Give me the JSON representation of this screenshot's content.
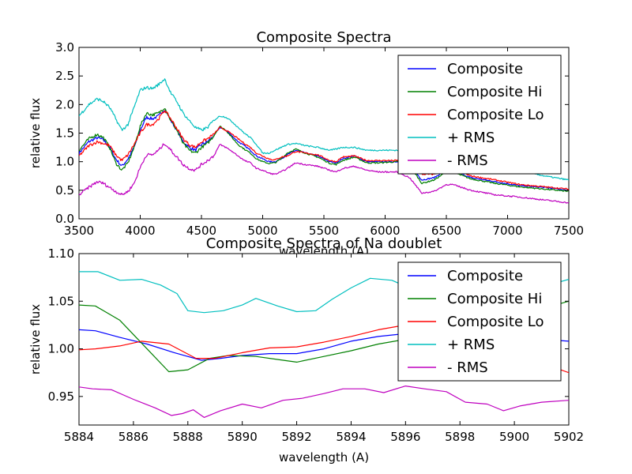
{
  "chart_data": [
    {
      "type": "line",
      "title": "Composite Spectra",
      "xlabel": "wavelength (A)",
      "ylabel": "relative flux",
      "xlim": [
        3500,
        7500
      ],
      "ylim": [
        0.0,
        3.0
      ],
      "xticks": [
        "3500",
        "4000",
        "4500",
        "5000",
        "5500",
        "6000",
        "6500",
        "7000",
        "7500"
      ],
      "yticks": [
        "0.0",
        "0.5",
        "1.0",
        "1.5",
        "2.0",
        "2.5",
        "3.0"
      ],
      "grid": false,
      "legend_position": "top-right",
      "series": [
        {
          "name": "Composite",
          "color": "#0000ff",
          "x": [
            3500,
            3580,
            3650,
            3700,
            3750,
            3800,
            3850,
            3900,
            3950,
            4000,
            4050,
            4100,
            4150,
            4200,
            4250,
            4300,
            4350,
            4400,
            4450,
            4500,
            4550,
            4600,
            4650,
            4700,
            4750,
            4800,
            4850,
            4900,
            4950,
            5000,
            5050,
            5100,
            5150,
            5200,
            5270,
            5350,
            5450,
            5550,
            5600,
            5650,
            5750,
            5850,
            5950,
            6100,
            6200,
            6300,
            6400,
            6500,
            6550,
            6700,
            6900,
            7100,
            7300,
            7500
          ],
          "y": [
            1.15,
            1.35,
            1.42,
            1.38,
            1.25,
            1.05,
            0.92,
            1.05,
            1.25,
            1.55,
            1.78,
            1.75,
            1.8,
            1.92,
            1.72,
            1.55,
            1.35,
            1.25,
            1.2,
            1.3,
            1.35,
            1.45,
            1.6,
            1.55,
            1.45,
            1.35,
            1.28,
            1.2,
            1.1,
            1.05,
            1.0,
            1.0,
            1.05,
            1.12,
            1.2,
            1.15,
            1.1,
            1.0,
            0.98,
            1.05,
            1.1,
            1.0,
            1.0,
            1.0,
            0.95,
            0.68,
            0.72,
            0.85,
            0.85,
            0.72,
            0.65,
            0.58,
            0.55,
            0.5
          ]
        },
        {
          "name": "Composite Hi",
          "color": "#008000",
          "x": [
            3500,
            3580,
            3650,
            3700,
            3750,
            3800,
            3850,
            3900,
            3950,
            4000,
            4050,
            4100,
            4150,
            4200,
            4250,
            4300,
            4350,
            4400,
            4450,
            4500,
            4550,
            4600,
            4650,
            4700,
            4750,
            4800,
            4850,
            4900,
            4950,
            5000,
            5050,
            5100,
            5150,
            5200,
            5270,
            5350,
            5450,
            5550,
            5600,
            5650,
            5750,
            5850,
            5950,
            6100,
            6200,
            6300,
            6400,
            6500,
            6550,
            6700,
            6900,
            7100,
            7300,
            7500
          ],
          "y": [
            1.2,
            1.4,
            1.48,
            1.42,
            1.25,
            0.98,
            0.85,
            0.98,
            1.25,
            1.62,
            1.85,
            1.82,
            1.85,
            1.95,
            1.72,
            1.55,
            1.32,
            1.2,
            1.15,
            1.25,
            1.32,
            1.45,
            1.62,
            1.55,
            1.42,
            1.3,
            1.22,
            1.15,
            1.05,
            1.0,
            0.97,
            0.98,
            1.05,
            1.15,
            1.22,
            1.15,
            1.08,
            0.97,
            0.95,
            1.02,
            1.08,
            0.98,
            0.98,
            1.0,
            0.94,
            0.62,
            0.68,
            0.82,
            0.82,
            0.7,
            0.62,
            0.56,
            0.52,
            0.48
          ]
        },
        {
          "name": "Composite Lo",
          "color": "#ff0000",
          "x": [
            3500,
            3580,
            3650,
            3700,
            3750,
            3800,
            3850,
            3900,
            3950,
            4000,
            4050,
            4100,
            4150,
            4200,
            4250,
            4300,
            4350,
            4400,
            4450,
            4500,
            4550,
            4600,
            4650,
            4700,
            4750,
            4800,
            4850,
            4900,
            4950,
            5000,
            5050,
            5100,
            5150,
            5200,
            5270,
            5350,
            5450,
            5550,
            5600,
            5650,
            5750,
            5850,
            5950,
            6100,
            6200,
            6300,
            6400,
            6500,
            6550,
            6700,
            6900,
            7100,
            7300,
            7500
          ],
          "y": [
            1.1,
            1.28,
            1.35,
            1.32,
            1.28,
            1.12,
            1.02,
            1.12,
            1.3,
            1.5,
            1.65,
            1.65,
            1.75,
            1.9,
            1.75,
            1.58,
            1.4,
            1.3,
            1.25,
            1.35,
            1.4,
            1.48,
            1.6,
            1.55,
            1.48,
            1.4,
            1.32,
            1.25,
            1.15,
            1.1,
            1.05,
            1.03,
            1.08,
            1.1,
            1.18,
            1.15,
            1.12,
            1.02,
            1.0,
            1.08,
            1.1,
            1.02,
            1.02,
            1.02,
            1.0,
            0.78,
            0.78,
            0.88,
            0.88,
            0.75,
            0.68,
            0.6,
            0.56,
            0.52
          ]
        },
        {
          "name": "+ RMS",
          "color": "#00bfbf",
          "x": [
            3500,
            3580,
            3650,
            3700,
            3750,
            3800,
            3850,
            3900,
            3950,
            4000,
            4050,
            4100,
            4150,
            4200,
            4250,
            4300,
            4350,
            4400,
            4450,
            4500,
            4550,
            4600,
            4650,
            4700,
            4750,
            4800,
            4850,
            4900,
            4950,
            5000,
            5050,
            5100,
            5150,
            5200,
            5270,
            5350,
            5450,
            5550,
            5600,
            5650,
            5750,
            5850,
            5950,
            6100,
            6200,
            6300,
            6400,
            6500,
            6550,
            6700,
            6900,
            7100,
            7300,
            7500
          ],
          "y": [
            1.8,
            2.0,
            2.1,
            2.05,
            1.95,
            1.75,
            1.55,
            1.65,
            1.95,
            2.25,
            2.3,
            2.28,
            2.35,
            2.45,
            2.2,
            2.05,
            1.85,
            1.72,
            1.6,
            1.55,
            1.6,
            1.72,
            1.8,
            1.78,
            1.7,
            1.6,
            1.5,
            1.42,
            1.3,
            1.15,
            1.15,
            1.2,
            1.25,
            1.3,
            1.32,
            1.28,
            1.25,
            1.2,
            1.22,
            1.25,
            1.25,
            1.2,
            1.2,
            1.2,
            1.2,
            1.1,
            1.1,
            1.15,
            1.1,
            0.98,
            0.9,
            0.85,
            0.75,
            0.68
          ]
        },
        {
          "name": "- RMS",
          "color": "#bf00bf",
          "x": [
            3500,
            3580,
            3650,
            3700,
            3750,
            3800,
            3850,
            3900,
            3950,
            4000,
            4050,
            4100,
            4150,
            4200,
            4250,
            4300,
            4350,
            4400,
            4450,
            4500,
            4550,
            4600,
            4650,
            4700,
            4750,
            4800,
            4850,
            4900,
            4950,
            5000,
            5050,
            5100,
            5150,
            5200,
            5270,
            5350,
            5450,
            5550,
            5600,
            5650,
            5750,
            5850,
            5950,
            6100,
            6200,
            6300,
            6400,
            6500,
            6550,
            6700,
            6900,
            7100,
            7300,
            7500
          ],
          "y": [
            0.42,
            0.55,
            0.65,
            0.62,
            0.55,
            0.48,
            0.42,
            0.48,
            0.62,
            0.9,
            1.12,
            1.12,
            1.2,
            1.32,
            1.2,
            1.08,
            0.95,
            0.88,
            0.85,
            0.95,
            1.02,
            1.1,
            1.3,
            1.25,
            1.18,
            1.1,
            1.02,
            0.98,
            0.88,
            0.85,
            0.8,
            0.78,
            0.82,
            0.88,
            0.98,
            0.95,
            0.92,
            0.85,
            0.82,
            0.88,
            0.92,
            0.85,
            0.82,
            0.82,
            0.72,
            0.45,
            0.48,
            0.6,
            0.6,
            0.5,
            0.42,
            0.38,
            0.33,
            0.28
          ]
        }
      ]
    },
    {
      "type": "line",
      "title": "Composite Spectra of Na doublet",
      "xlabel": "wavelength (A)",
      "ylabel": "relative flux",
      "xlim": [
        5884,
        5902
      ],
      "ylim": [
        0.92,
        1.1
      ],
      "xticks": [
        "5884",
        "5886",
        "5888",
        "5890",
        "5892",
        "5894",
        "5896",
        "5898",
        "5900",
        "5902"
      ],
      "yticks": [
        "0.95",
        "1.00",
        "1.05",
        "1.10"
      ],
      "grid": false,
      "legend_position": "top-right",
      "series": [
        {
          "name": "Composite",
          "color": "#0000ff",
          "x": [
            5884,
            5884.6,
            5885.5,
            5886.5,
            5887.5,
            5888.5,
            5889.2,
            5890,
            5891,
            5892,
            5893,
            5894,
            5895,
            5896,
            5897,
            5898,
            5899,
            5900,
            5901,
            5902
          ],
          "y": [
            1.02,
            1.019,
            1.012,
            1.005,
            0.996,
            0.988,
            0.99,
            0.993,
            0.995,
            0.995,
            1.0,
            1.008,
            1.013,
            1.016,
            1.014,
            1.01,
            1.008,
            1.01,
            1.01,
            1.008
          ]
        },
        {
          "name": "Composite Hi",
          "color": "#008000",
          "x": [
            5884,
            5884.6,
            5885.5,
            5886.5,
            5887.3,
            5888,
            5888.8,
            5889.5,
            5890.5,
            5891.5,
            5892,
            5893,
            5894,
            5895,
            5896,
            5897,
            5898,
            5899,
            5900,
            5901,
            5902
          ],
          "y": [
            1.046,
            1.045,
            1.03,
            1.0,
            0.976,
            0.978,
            0.99,
            0.993,
            0.992,
            0.988,
            0.986,
            0.992,
            0.998,
            1.005,
            1.01,
            1.015,
            1.02,
            1.028,
            1.035,
            1.042,
            1.05
          ]
        },
        {
          "name": "Composite Lo",
          "color": "#ff0000",
          "x": [
            5884,
            5884.6,
            5885.5,
            5886.3,
            5887.3,
            5888.3,
            5889,
            5890,
            5891,
            5892,
            5893,
            5894,
            5895,
            5896,
            5897,
            5898,
            5899,
            5900,
            5901,
            5902
          ],
          "y": [
            0.999,
            1.0,
            1.003,
            1.008,
            1.005,
            0.99,
            0.99,
            0.996,
            1.001,
            1.002,
            1.007,
            1.013,
            1.02,
            1.025,
            1.026,
            1.022,
            1.01,
            0.995,
            0.985,
            0.975
          ]
        },
        {
          "name": "+ RMS",
          "color": "#00bfbf",
          "x": [
            5884,
            5884.7,
            5885.5,
            5886.3,
            5887,
            5887.6,
            5888,
            5888.6,
            5889.3,
            5890,
            5890.5,
            5891.3,
            5892,
            5892.7,
            5893.3,
            5894,
            5894.7,
            5895.5,
            5896.3,
            5897,
            5898,
            5899,
            5900,
            5901,
            5902
          ],
          "y": [
            1.081,
            1.081,
            1.072,
            1.073,
            1.067,
            1.058,
            1.04,
            1.038,
            1.04,
            1.046,
            1.053,
            1.045,
            1.039,
            1.04,
            1.052,
            1.064,
            1.074,
            1.072,
            1.062,
            1.055,
            1.045,
            1.052,
            1.06,
            1.065,
            1.073
          ]
        },
        {
          "name": "- RMS",
          "color": "#bf00bf",
          "x": [
            5884,
            5884.5,
            5885.2,
            5886,
            5886.8,
            5887.4,
            5887.8,
            5888.2,
            5888.6,
            5889.2,
            5890,
            5890.7,
            5891.5,
            5892.2,
            5893,
            5893.7,
            5894.5,
            5895.2,
            5896,
            5896.7,
            5897.5,
            5898.2,
            5899,
            5899.6,
            5900.2,
            5901,
            5902
          ],
          "y": [
            0.96,
            0.958,
            0.957,
            0.947,
            0.938,
            0.93,
            0.932,
            0.936,
            0.928,
            0.935,
            0.942,
            0.938,
            0.946,
            0.948,
            0.953,
            0.958,
            0.958,
            0.954,
            0.961,
            0.958,
            0.955,
            0.944,
            0.942,
            0.935,
            0.94,
            0.944,
            0.946
          ]
        }
      ]
    }
  ]
}
